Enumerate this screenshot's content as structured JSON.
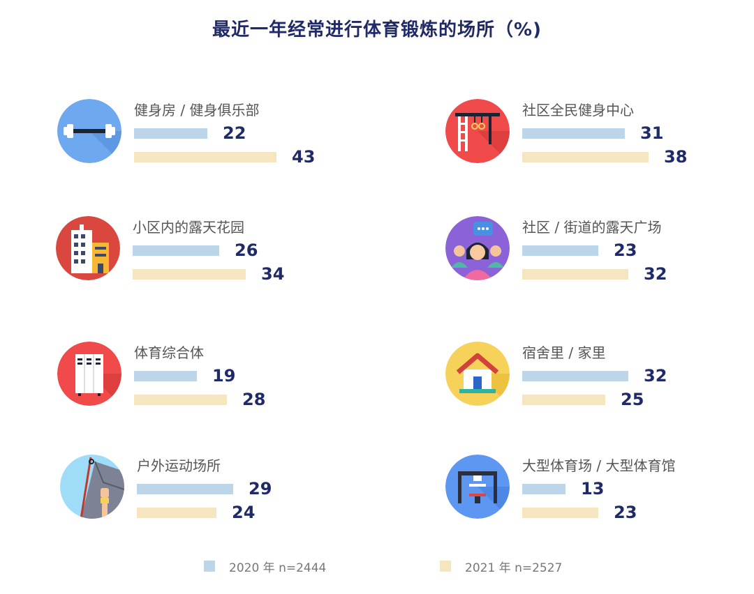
{
  "chart_data": {
    "type": "bar",
    "title": "最近一年经常进行体育锻炼的场所（%)",
    "series": [
      {
        "name": "2020 年 n=2444",
        "color": "#bcd5e9"
      },
      {
        "name": "2021 年 n=2527",
        "color": "#f5e5c0"
      }
    ],
    "categories": [
      {
        "label": "健身房 / 健身俱乐部",
        "icon": "dumbbell-icon",
        "icon_bg": "#6ea8ef",
        "values": [
          22,
          43
        ]
      },
      {
        "label": "社区全民健身中心",
        "icon": "outdoor-gym-icon",
        "icon_bg": "#f04a4a",
        "values": [
          31,
          38
        ]
      },
      {
        "label": "小区内的露天花园",
        "icon": "apartment-building-icon",
        "icon_bg": "#d9473f",
        "values": [
          26,
          34
        ]
      },
      {
        "label": "社区 / 街道的露天广场",
        "icon": "community-people-icon",
        "icon_bg": "#8c62d8",
        "values": [
          23,
          32
        ]
      },
      {
        "label": "体育综合体",
        "icon": "lockers-icon",
        "icon_bg": "#f04a4a",
        "values": [
          19,
          28
        ]
      },
      {
        "label": "宿舍里 / 家里",
        "icon": "house-icon",
        "icon_bg": "#f7d25a",
        "values": [
          32,
          25
        ]
      },
      {
        "label": "户外运动场所",
        "icon": "rock-climbing-icon",
        "icon_bg": "#9fdcf7",
        "values": [
          29,
          24
        ]
      },
      {
        "label": "大型体育场 / 大型体育馆",
        "icon": "stadium-gym-icon",
        "icon_bg": "#5d97f2",
        "values": [
          13,
          23
        ]
      }
    ]
  }
}
